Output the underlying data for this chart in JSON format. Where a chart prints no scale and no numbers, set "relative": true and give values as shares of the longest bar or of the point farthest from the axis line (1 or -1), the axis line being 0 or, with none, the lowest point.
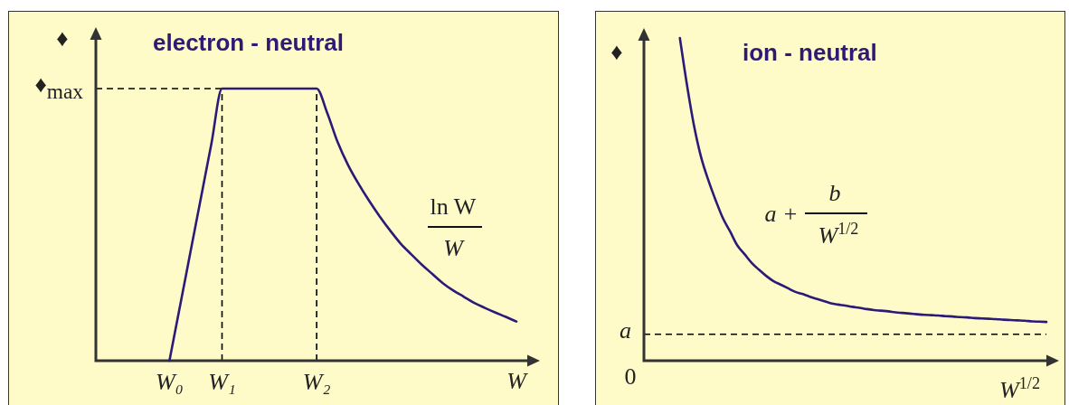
{
  "chart_data": [
    {
      "type": "line",
      "title": "electron - neutral",
      "xlabel": "W",
      "ylabel": "♦",
      "relative": true,
      "legend": false,
      "grid": false,
      "marker": "none",
      "color": "#2b1a78",
      "categories": [
        null,
        null,
        null,
        null,
        null,
        null,
        null,
        "W₀",
        null,
        null,
        null,
        null,
        "W₁",
        null,
        null,
        null,
        null,
        null,
        null,
        null,
        null,
        "W₂",
        null,
        null,
        null,
        null,
        null,
        null,
        null,
        null,
        null,
        null,
        null,
        null,
        null,
        null,
        null,
        null,
        null,
        null,
        null
      ],
      "values": [
        null,
        null,
        null,
        null,
        null,
        null,
        null,
        0,
        0.2,
        0.4,
        0.6,
        0.8,
        1,
        1,
        1,
        1,
        1,
        1,
        1,
        1,
        1,
        1,
        0.911,
        0.803,
        0.718,
        0.649,
        0.587,
        0.53,
        0.478,
        0.43,
        0.391,
        0.353,
        0.319,
        0.285,
        0.258,
        0.235,
        0.212,
        0.194,
        0.177,
        0.161,
        0.144
      ],
      "ref_lines": [
        {
          "axis": "y",
          "value": 1,
          "label": "♦$_{max}$",
          "line_style": "dashed",
          "color": "#000000"
        },
        {
          "axis": "x",
          "value": "W₁",
          "line_style": "dashed",
          "color": "#000000"
        },
        {
          "axis": "x",
          "value": "W₂",
          "line_style": "dashed",
          "color": "#000000"
        }
      ],
      "annotations": [
        "ln W",
        "W"
      ]
    },
    {
      "type": "line",
      "title": "ion - neutral",
      "xlabel": "W$^{1/2}$",
      "ylabel": "♦",
      "relative": true,
      "legend": false,
      "grid": false,
      "marker": "none",
      "color": "#2b1a78",
      "categories": [
        null,
        null,
        null,
        null,
        null,
        null,
        null,
        null,
        null,
        null,
        null,
        null,
        null,
        null,
        null,
        null,
        null,
        null,
        null,
        null,
        null,
        null,
        null,
        null,
        null,
        null,
        null,
        null,
        null,
        null,
        null,
        null,
        null,
        null,
        null,
        null,
        null,
        null,
        null,
        null,
        null,
        null,
        null,
        null,
        null,
        null,
        null,
        null,
        null,
        null,
        null,
        null,
        null,
        null,
        null,
        null,
        null
      ],
      "values": [
        null,
        null,
        null,
        null,
        null,
        1,
        0.853,
        0.725,
        0.627,
        0.557,
        0.496,
        0.441,
        0.4,
        0.357,
        0.33,
        0.303,
        0.282,
        0.263,
        0.247,
        0.236,
        0.225,
        0.214,
        0.207,
        0.199,
        0.192,
        0.185,
        0.178,
        0.174,
        0.171,
        0.167,
        0.164,
        0.16,
        0.157,
        0.155,
        0.153,
        0.15,
        0.148,
        0.146,
        0.144,
        0.142,
        0.141,
        0.14,
        0.138,
        0.137,
        0.135,
        0.134,
        0.132,
        0.131,
        0.13,
        0.129,
        0.127,
        0.126,
        0.125,
        0.124,
        0.122,
        0.121,
        0.12
      ],
      "ref_lines": [
        {
          "axis": "y",
          "value": 0.082,
          "label": "a",
          "line_style": "dashed",
          "color": "#000000"
        }
      ],
      "annotations": [
        "a +",
        "b",
        "W$^{1/2}$",
        "0"
      ]
    }
  ]
}
